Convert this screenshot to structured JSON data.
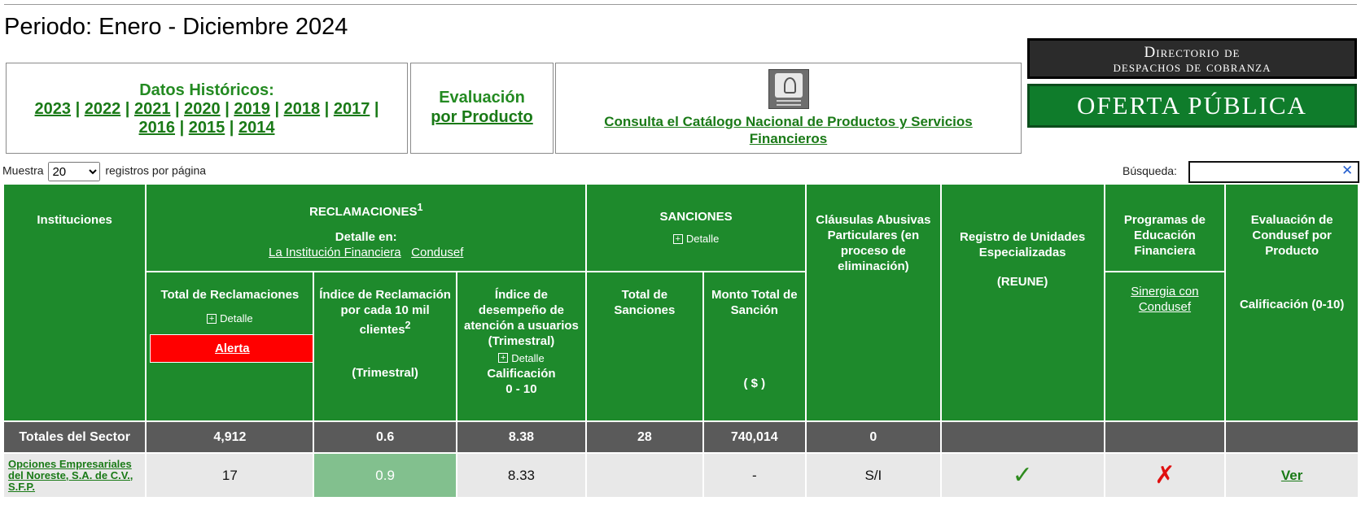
{
  "period": "Periodo: Enero - Diciembre 2024",
  "historic": {
    "title": "Datos Históricos:",
    "years_row1": [
      "2023",
      "2022",
      "2021",
      "2020",
      "2019",
      "2018",
      "2017"
    ],
    "years_row2": [
      "2016",
      "2015",
      "2014"
    ]
  },
  "eval_product": {
    "line1": "Evaluación",
    "line2": "por Producto"
  },
  "catalog": {
    "line1": "Consulta el Catálogo Nacional de Productos y Servicios",
    "line2": "Financieros"
  },
  "banners": {
    "directory_line1": "Directorio de",
    "directory_line2": "despachos de cobranza",
    "offer": "OFERTA PÚBLICA"
  },
  "controls": {
    "show_prefix": "Muestra",
    "page_size": "20",
    "page_size_options": [
      "20"
    ],
    "show_suffix": "registros por página",
    "search_label": "Búsqueda:",
    "search_value": "",
    "search_clear": "✕"
  },
  "headers": {
    "institutions": "Instituciones",
    "reclamaciones": "RECLAMACIONES",
    "reclamaciones_sup": "1",
    "detalle_en": "Detalle en:",
    "link_institucion": "La Institución Financiera",
    "link_condusef": "Condusef",
    "sanciones": "SANCIONES",
    "detalle": "Detalle",
    "clausulas": "Cláusulas Abusivas Particulares (en proceso de eliminación)",
    "reune_line1": "Registro de Unidades Especializadas",
    "reune_line2": "(REUNE)",
    "programas": "Programas de Educación Financiera",
    "sinergia": "Sinergia con Condusef",
    "eval_condusef": "Evaluación de Condusef por Producto",
    "calif_010": "Calificación (0-10)",
    "total_reclamaciones": "Total de Reclamaciones",
    "alerta": "Alerta",
    "indice_reclamacion": "Índice de Reclamación por cada 10 mil clientes",
    "indice_sup": "2",
    "trimestral": "(Trimestral)",
    "indice_desempeno": "Índice de desempeño de atención a usuarios (Trimestral)",
    "calificacion": "Calificación",
    "rango": "0 - 10",
    "total_sanciones": "Total de Sanciones",
    "monto_total": "Monto Total de Sanción",
    "moneda": "( $ )"
  },
  "totals": {
    "label": "Totales del Sector",
    "total_reclamaciones": "4,912",
    "indice": "0.6",
    "desempeno": "8.38",
    "total_sanciones": "28",
    "monto": "740,014",
    "clausulas": "0"
  },
  "rows": [
    {
      "institution": "Opciones Empresariales del Noreste, S.A. de C.V., S.F.P.",
      "total_reclamaciones": "17",
      "indice": "0.9",
      "desempeno": "8.33",
      "total_sanciones": "",
      "monto": "-",
      "clausulas": "S/I",
      "reune": "check-icon",
      "programas": "cross-icon",
      "evaluacion": "Ver"
    }
  ],
  "colors": {
    "header_green": "#1e8a2c",
    "link_green": "#1a7a17",
    "alert_red": "#ff0000",
    "totals_gray": "#5a5a5a",
    "index_green": "#82c08e"
  }
}
